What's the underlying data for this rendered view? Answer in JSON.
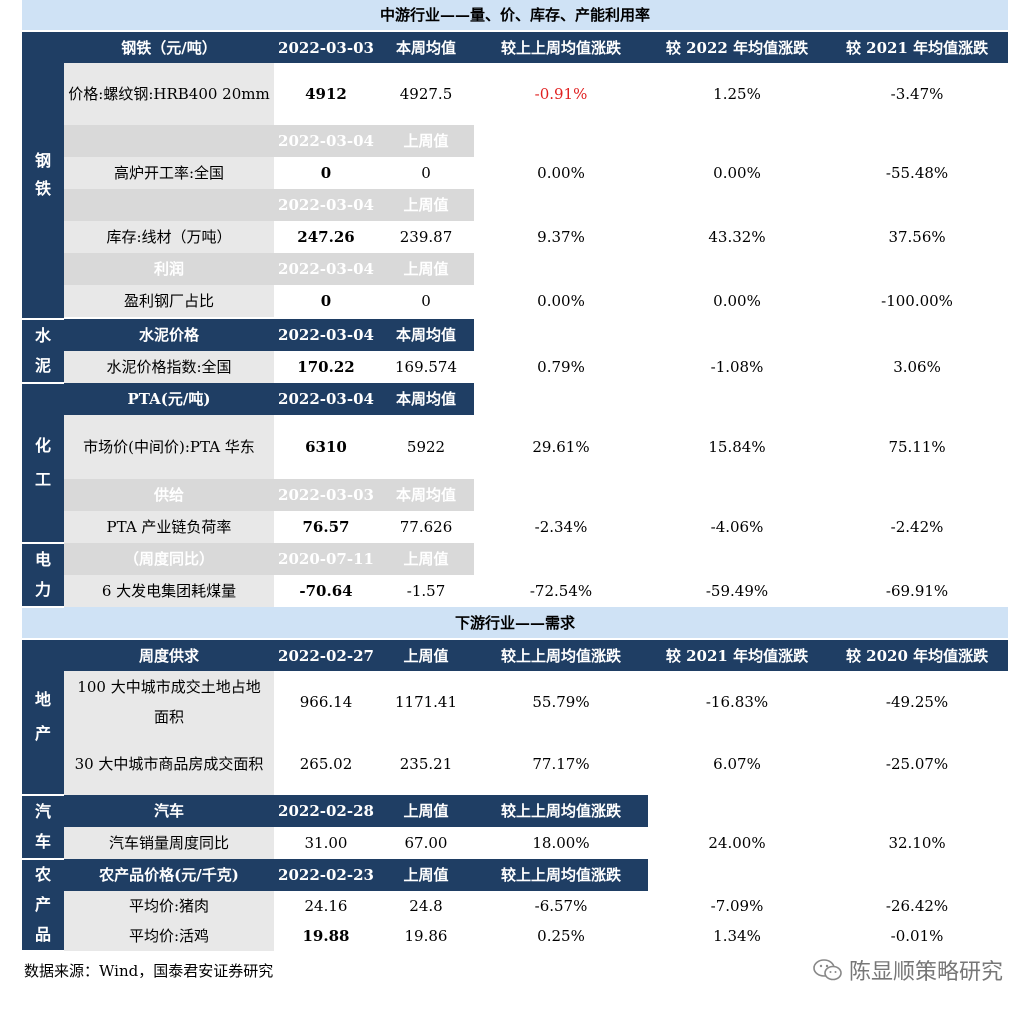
{
  "mid_section": {
    "title": "中游行业——量、价、库存、产能利用率",
    "header": [
      "钢铁（元/吨）",
      "2022-03-03",
      "本周均值",
      "较上上周均值涨跌",
      "较 2022 年均值涨跌",
      "较 2021 年均值涨跌"
    ],
    "groups": {
      "steel": {
        "label": "钢\n铁",
        "rows": [
          {
            "name": "价格:螺纹钢:HRB400 20mm",
            "cur": "4912",
            "prev": "4927.5",
            "c1": "-0.91%",
            "c2": "1.25%",
            "c3": "-3.47%"
          },
          {
            "sub_title": "",
            "sub_date": "2022-03-04",
            "sub_prev": "上周值"
          },
          {
            "name": "高炉开工率:全国",
            "cur": "0",
            "prev": "0",
            "c1": "0.00%",
            "c2": "0.00%",
            "c3": "-55.48%"
          },
          {
            "sub_title": "",
            "sub_date": "2022-03-04",
            "sub_prev": "上周值"
          },
          {
            "name": "库存:线材（万吨）",
            "cur": "247.26",
            "prev": "239.87",
            "c1": "9.37%",
            "c2": "43.32%",
            "c3": "37.56%"
          },
          {
            "sub_title": "利润",
            "sub_date": "2022-03-04",
            "sub_prev": "上周值"
          },
          {
            "name": "盈利钢厂占比",
            "cur": "0",
            "prev": "0",
            "c1": "0.00%",
            "c2": "0.00%",
            "c3": "-100.00%"
          }
        ]
      },
      "cement": {
        "label": "水\n泥",
        "head": [
          "水泥价格",
          "2022-03-04",
          "本周均值"
        ],
        "row": {
          "name": "水泥价格指数:全国",
          "cur": "170.22",
          "prev": "169.574",
          "c1": "0.79%",
          "c2": "-1.08%",
          "c3": "3.06%"
        }
      },
      "chem": {
        "label": "化\n工",
        "head": [
          "PTA(元/吨)",
          "2022-03-04",
          "本周均值"
        ],
        "row1": {
          "name": "市场价(中间价):PTA 华东",
          "cur": "6310",
          "prev": "5922",
          "c1": "29.61%",
          "c2": "15.84%",
          "c3": "75.11%"
        },
        "sub": [
          "供给",
          "2022-03-03",
          "本周均值"
        ],
        "row2": {
          "name": "PTA 产业链负荷率",
          "cur": "76.57",
          "prev": "77.626",
          "c1": "-2.34%",
          "c2": "-4.06%",
          "c3": "-2.42%"
        }
      },
      "power": {
        "label": "电\n力",
        "sub": [
          "（周度同比）",
          "2020-07-11",
          "上周值"
        ],
        "row": {
          "name": "6 大发电集团耗煤量",
          "cur": "-70.64",
          "prev": "-1.57",
          "c1": "-72.54%",
          "c2": "-59.49%",
          "c3": "-69.91%"
        }
      }
    }
  },
  "down_section": {
    "title": "下游行业——需求",
    "header": [
      "周度供求",
      "2022-02-27",
      "上周值",
      "较上上周均值涨跌",
      "较 2021 年均值涨跌",
      "较 2020 年均值涨跌"
    ],
    "estate": {
      "label": "地\n产",
      "row1": {
        "name": "100 大中城市成交土地占地面积",
        "cur": "966.14",
        "prev": "1171.41",
        "c1": "55.79%",
        "c2": "-16.83%",
        "c3": "-49.25%"
      },
      "row2": {
        "name": "30 大中城市商品房成交面积",
        "cur": "265.02",
        "prev": "235.21",
        "c1": "77.17%",
        "c2": "6.07%",
        "c3": "-25.07%"
      }
    },
    "auto": {
      "label": "汽\n车",
      "head": [
        "汽车",
        "2022-02-28",
        "上周值",
        "较上上周均值涨跌"
      ],
      "row": {
        "name": "汽车销量周度同比",
        "cur": "31.00",
        "prev": "67.00",
        "c1": "18.00%",
        "c2": "24.00%",
        "c3": "32.10%"
      }
    },
    "agri": {
      "label": "农\n产\n品",
      "head": [
        "农产品价格(元/千克)",
        "2022-02-23",
        "上周值",
        "较上上周均值涨跌"
      ],
      "row1": {
        "name": "平均价:猪肉",
        "cur": "24.16",
        "prev": "24.8",
        "c1": "-6.57%",
        "c2": "-7.09%",
        "c3": "-26.42%"
      },
      "row2": {
        "name": "平均价:活鸡",
        "cur": "19.88",
        "prev": "19.86",
        "c1": "0.25%",
        "c2": "1.34%",
        "c3": "-0.01%"
      }
    }
  },
  "source": "数据来源：Wind，国泰君安证券研究",
  "watermark": "陈显顺策略研究"
}
